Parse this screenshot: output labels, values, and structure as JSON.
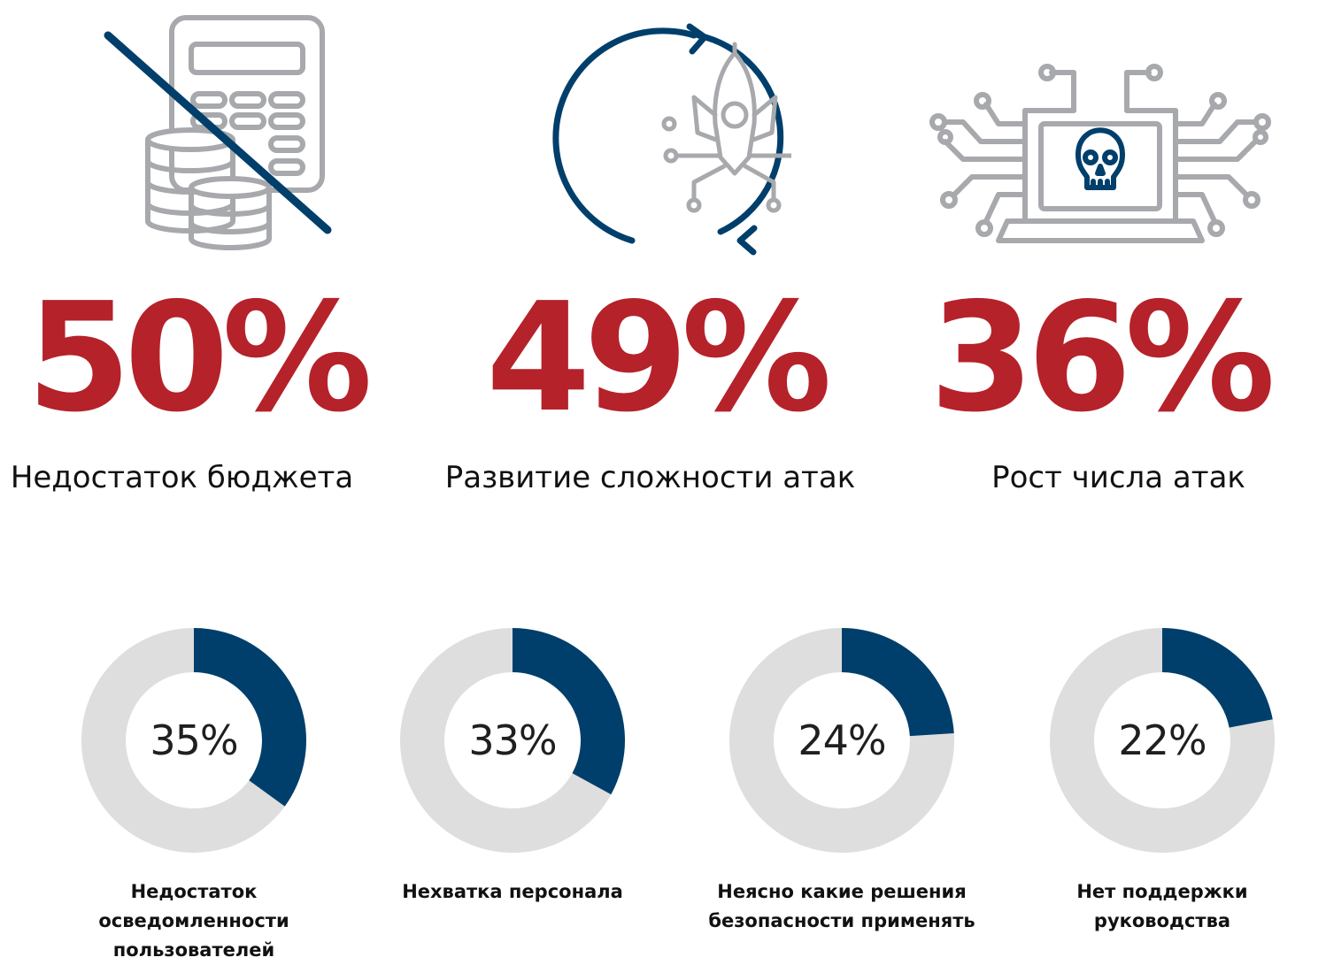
{
  "colors": {
    "accent": "#b5222a",
    "navy": "#003f6b",
    "gray": "#dedede",
    "icon_gray": "#a7a9ac"
  },
  "top_stats": [
    {
      "value": "50%",
      "label": "Недостаток бюджета",
      "icon": "calculator-coins-crossed-icon"
    },
    {
      "value": "49%",
      "label": "Развитие сложности атак",
      "icon": "rocket-cycle-icon"
    },
    {
      "value": "36%",
      "label": "Рост числа атак",
      "icon": "laptop-skull-circuit-icon"
    }
  ],
  "chart_data": {
    "type": "pie",
    "categories": [
      "Недостаток осведомленности\nпользователей",
      "Нехватка персонала",
      "Неясно какие решения\nбезопасности применять",
      "Нет поддержки\nруководства"
    ],
    "values": [
      35,
      33,
      24,
      22
    ],
    "value_labels": [
      "35%",
      "33%",
      "24%",
      "22%"
    ]
  }
}
